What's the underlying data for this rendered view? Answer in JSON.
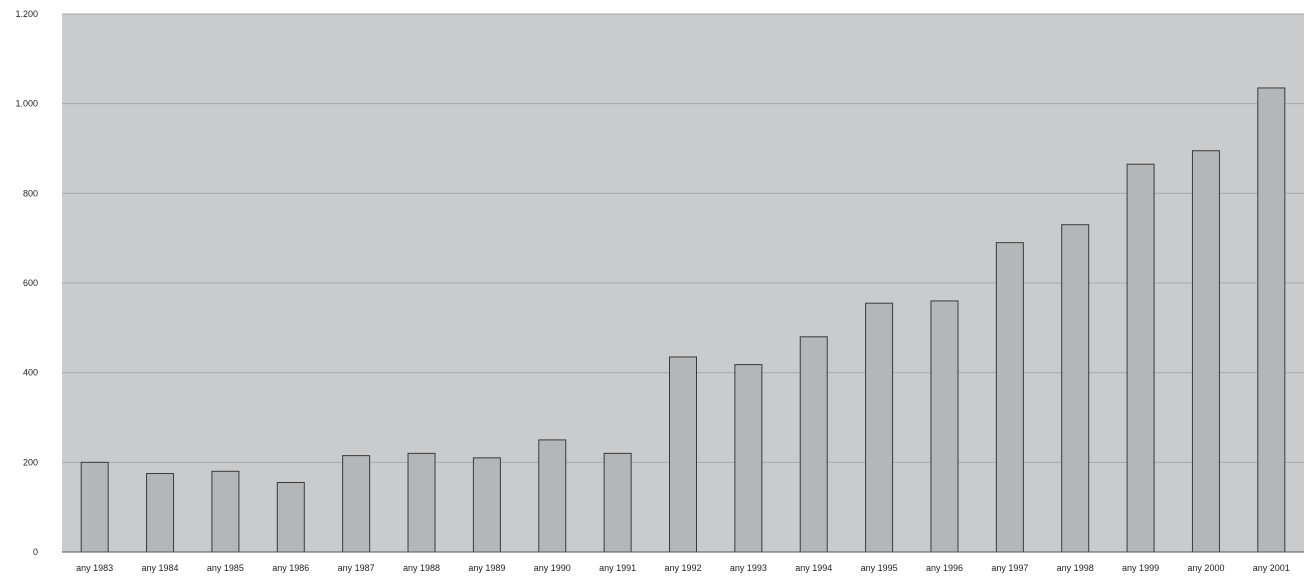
{
  "chart_data": {
    "type": "bar",
    "categories": [
      "any 1983",
      "any 1984",
      "any 1985",
      "any 1986",
      "any 1987",
      "any 1988",
      "any 1989",
      "any 1990",
      "any 1991",
      "any 1992",
      "any 1993",
      "any 1994",
      "any 1995",
      "any 1996",
      "any 1997",
      "any 1998",
      "any 1999",
      "any 2000",
      "any 2001"
    ],
    "values": [
      200,
      175,
      180,
      155,
      215,
      220,
      210,
      250,
      220,
      435,
      418,
      480,
      555,
      560,
      690,
      730,
      865,
      895,
      1035
    ],
    "ylim": [
      0,
      1200
    ],
    "yticks": [
      0,
      200,
      400,
      600,
      800,
      1000,
      1200
    ],
    "ytick_labels": [
      "0",
      "200",
      "400",
      "600",
      "800",
      "1.000",
      "1.200"
    ],
    "grid": true,
    "colors": {
      "plot_background": "#c9cbcd",
      "bar_fill": "#b4b7ba",
      "bar_edge": "#3a3a3a",
      "gridline": "#a7a9ac"
    }
  }
}
